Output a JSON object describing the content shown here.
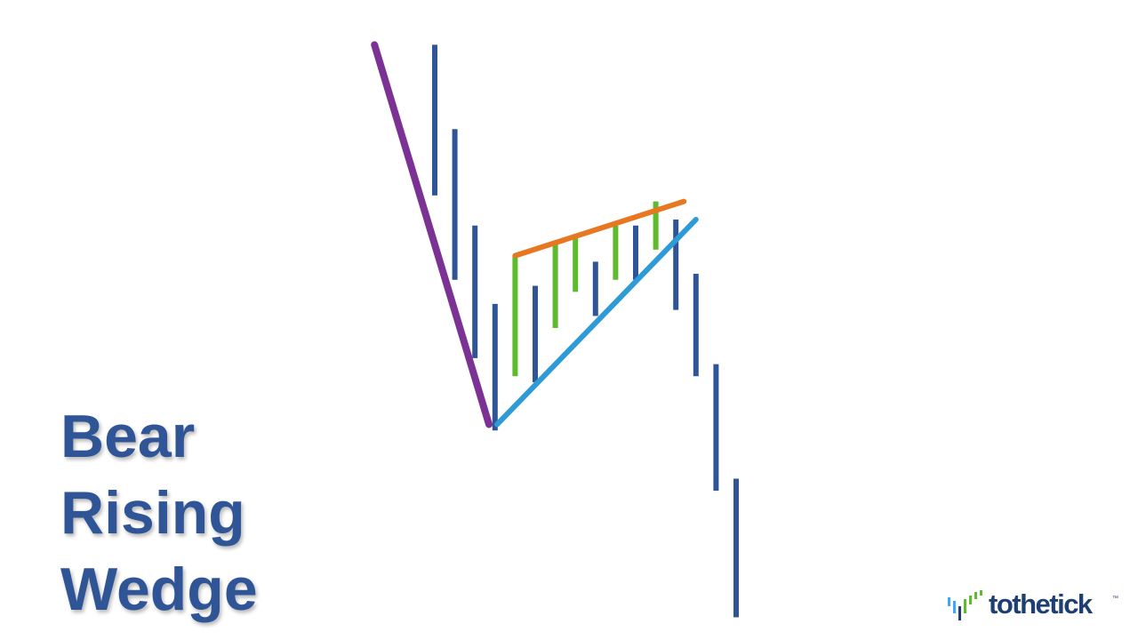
{
  "title": {
    "lines": [
      "Bear",
      "Rising",
      "Wedge"
    ]
  },
  "logo": {
    "wordmark": "tothetick",
    "tm": "™"
  },
  "colors": {
    "down_bar": "#2F5597",
    "up_bar": "#5DBB2C",
    "trend_line": "#7B3294",
    "wedge_top": "#E87722",
    "wedge_bottom": "#2E9BD6",
    "title": "#2F5597"
  },
  "chart_data": {
    "type": "bar",
    "style": "price-bars",
    "price_range": [
      0,
      100
    ],
    "bars": [
      {
        "high": 97,
        "low": 72,
        "direction": "down"
      },
      {
        "high": 83,
        "low": 58,
        "direction": "down"
      },
      {
        "high": 67,
        "low": 45,
        "direction": "down"
      },
      {
        "high": 54,
        "low": 33,
        "direction": "down"
      },
      {
        "high": 62,
        "low": 42,
        "direction": "up"
      },
      {
        "high": 57,
        "low": 41,
        "direction": "down"
      },
      {
        "high": 64,
        "low": 50,
        "direction": "up"
      },
      {
        "high": 65,
        "low": 56,
        "direction": "up"
      },
      {
        "high": 61,
        "low": 52,
        "direction": "down"
      },
      {
        "high": 67,
        "low": 58,
        "direction": "up"
      },
      {
        "high": 67,
        "low": 58,
        "direction": "down"
      },
      {
        "high": 71,
        "low": 63,
        "direction": "up"
      },
      {
        "high": 68,
        "low": 53,
        "direction": "down"
      },
      {
        "high": 59,
        "low": 42,
        "direction": "down"
      },
      {
        "high": 44,
        "low": 23,
        "direction": "down"
      },
      {
        "high": 25,
        "low": 2,
        "direction": "down"
      }
    ],
    "trend_lines": [
      {
        "name": "trend",
        "from": {
          "bar": -3,
          "price": 97
        },
        "to": {
          "bar": 2.7,
          "price": 34
        }
      },
      {
        "name": "wedge-upper",
        "from": {
          "bar": 4,
          "price": 62
        },
        "to": {
          "bar": 12.4,
          "price": 71
        }
      },
      {
        "name": "wedge-lower",
        "from": {
          "bar": 3.1,
          "price": 34
        },
        "to": {
          "bar": 13,
          "price": 68
        }
      }
    ]
  }
}
